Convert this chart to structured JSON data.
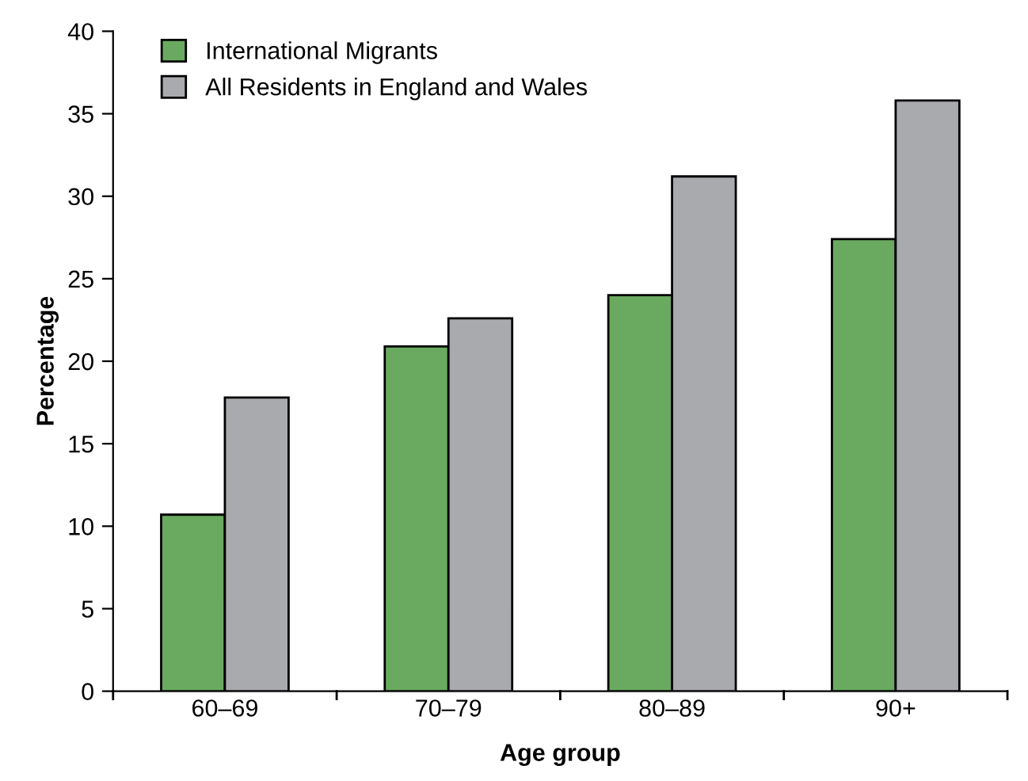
{
  "chart_data": {
    "type": "bar",
    "xlabel": "Age group",
    "ylabel": "Percentage",
    "categories": [
      "60–69",
      "70–79",
      "80–89",
      "90+"
    ],
    "series": [
      {
        "name": "International Migrants",
        "color": "#6aaa60",
        "values": [
          10.7,
          20.9,
          24.0,
          27.4
        ]
      },
      {
        "name": "All Residents in England and Wales",
        "color": "#a9aaad",
        "values": [
          17.8,
          22.6,
          31.2,
          35.8
        ]
      }
    ],
    "ylim": [
      0,
      40
    ],
    "yticks": [
      0,
      5,
      10,
      15,
      20,
      25,
      30,
      35,
      40
    ],
    "grid": false,
    "legend": "top left"
  }
}
